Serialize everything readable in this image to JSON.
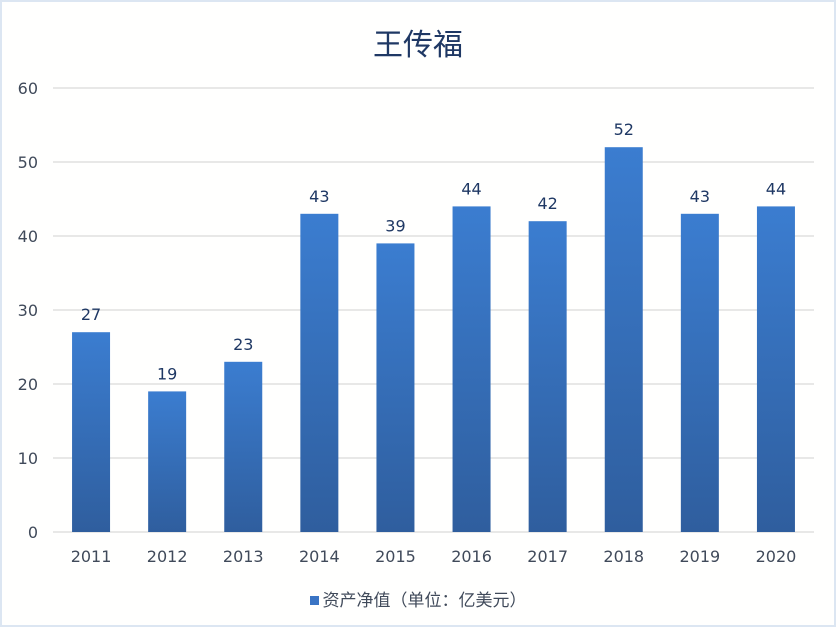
{
  "chart_data": {
    "type": "bar",
    "title": "王传福",
    "categories": [
      "2011",
      "2012",
      "2013",
      "2014",
      "2015",
      "2016",
      "2017",
      "2018",
      "2019",
      "2020"
    ],
    "series": [
      {
        "name": "资产净值（单位：亿美元）",
        "values": [
          27,
          19,
          23,
          43,
          39,
          44,
          42,
          52,
          43,
          44
        ]
      }
    ],
    "ylim": [
      0,
      60
    ],
    "yticks": [
      0,
      10,
      20,
      30,
      40,
      50,
      60
    ],
    "xlabel": "",
    "ylabel": "",
    "grid": true,
    "legend": "bottom",
    "colors": {
      "bar_top": "#3b7dd0",
      "bar_bottom": "#2f5e9e",
      "label": "#1f3864"
    }
  }
}
